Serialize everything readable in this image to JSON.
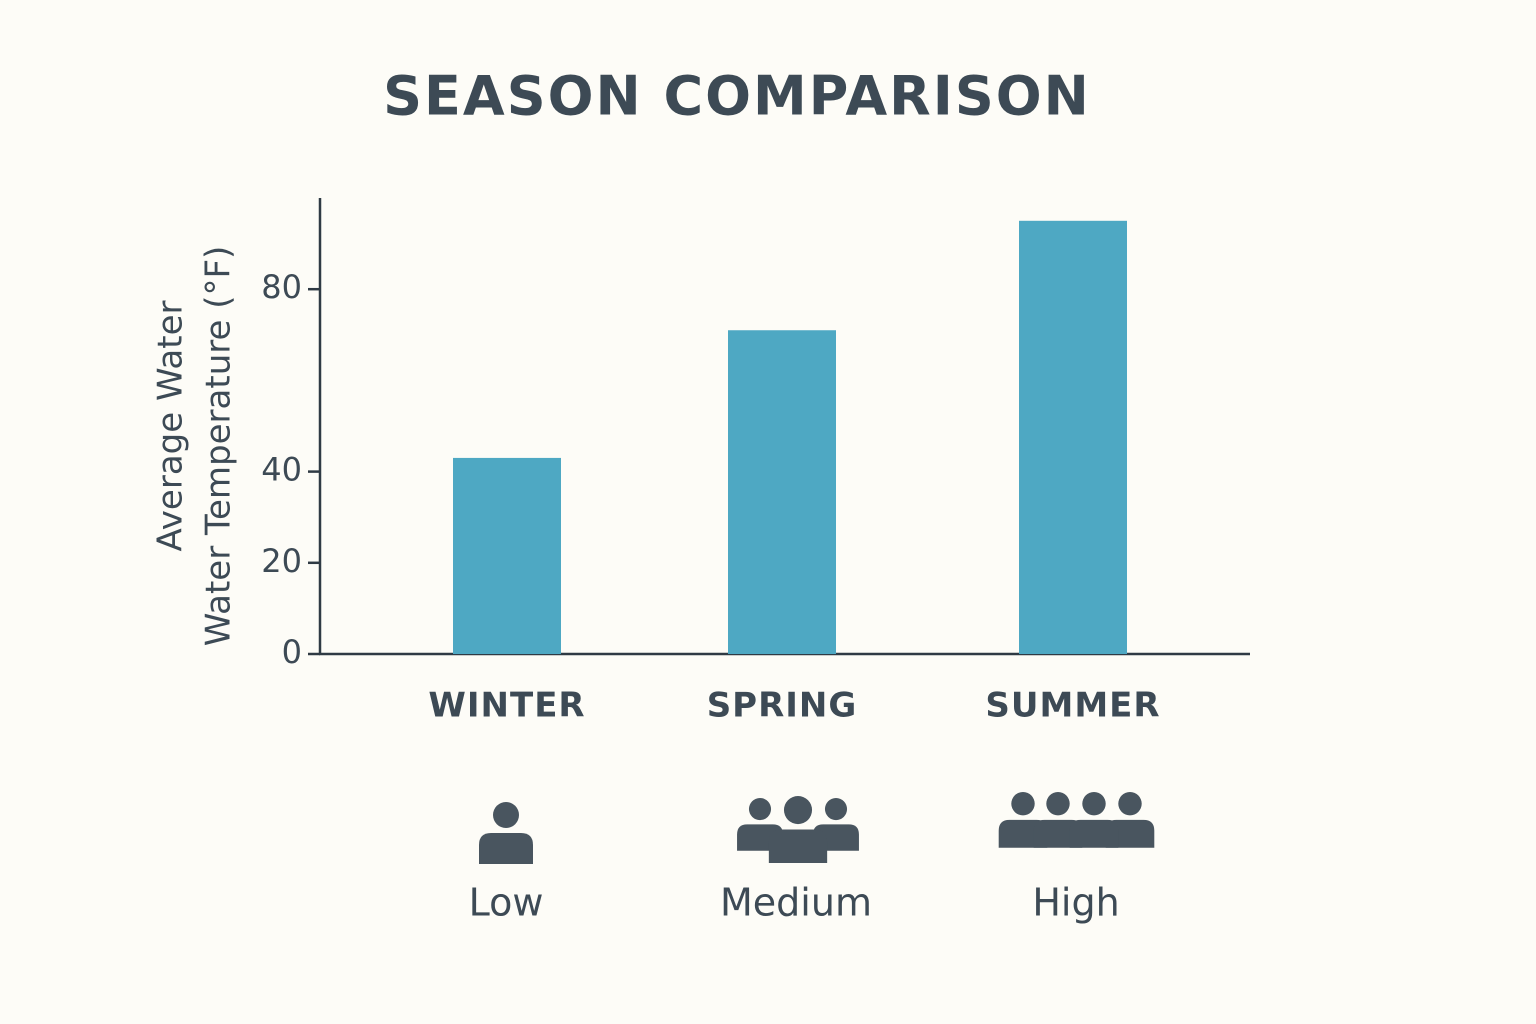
{
  "chart_data": {
    "type": "bar",
    "title": "SEASON COMPARISON",
    "y_label": [
      "Average Water",
      "Water Temperature (°F)"
    ],
    "categories": [
      "WINTER",
      "SPRING",
      "SUMMER"
    ],
    "values": [
      43,
      71,
      95
    ],
    "color": "#4ea8c3",
    "ylim": [
      0,
      100
    ],
    "yticks": [
      0,
      20,
      40,
      80
    ],
    "grid": false,
    "crowd_levels": [
      "Low",
      "Medium",
      "High"
    ]
  }
}
